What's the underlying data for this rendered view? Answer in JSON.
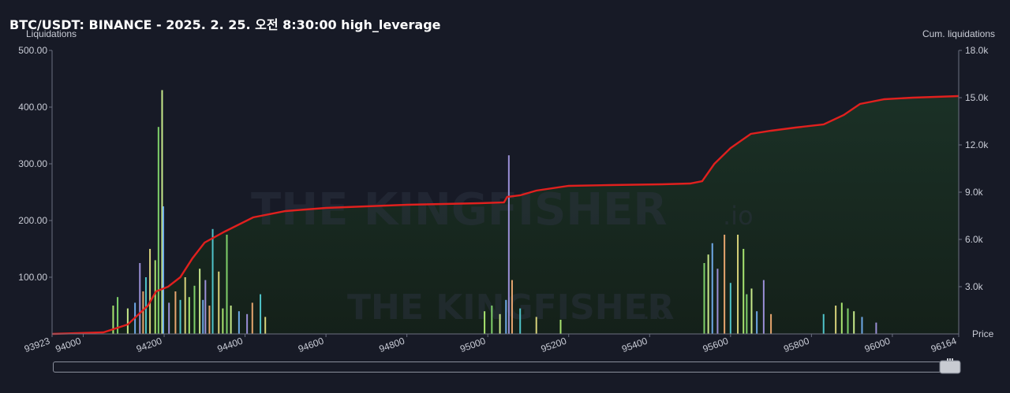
{
  "header": {
    "title": "BTC/USDT: BINANCE - 2025. 2. 25. 오전 8:30:00 high_leverage",
    "left_axis_label": "Liquidations",
    "right_axis_label": "Cum. liquidations",
    "price_label": "Price"
  },
  "watermark": {
    "text": "THE KINGFISHER",
    "suffix": ".io"
  },
  "colors": {
    "background": "#171a26",
    "cum_line": "#e0201e",
    "cum_fill": "#17281f",
    "bar_palette": [
      "#a8e46f",
      "#7fd06a",
      "#c7e98a",
      "#6ea8e6",
      "#9a8fd6",
      "#e6a56e",
      "#4fc3c9",
      "#d7d27a"
    ]
  },
  "scrollbar": {
    "handle_icon": "drag-handle-icon"
  },
  "chart_data": {
    "type": "bar",
    "x_range": [
      93923,
      96164
    ],
    "x_ticks": [
      "93923",
      "94000",
      "94200",
      "94400",
      "94600",
      "94800",
      "95000",
      "95200",
      "95400",
      "95600",
      "95800",
      "96000",
      "96164"
    ],
    "y_left": {
      "label": "Liquidations",
      "range": [
        0,
        500
      ],
      "ticks": [
        "500.00",
        "400.00",
        "300.00",
        "200.00",
        "100.00"
      ]
    },
    "y_right": {
      "label": "Cum. liquidations",
      "range": [
        0,
        18000
      ],
      "ticks": [
        "18.0k",
        "15.0k",
        "12.0k",
        "9.0k",
        "6.0k",
        "3.0k"
      ]
    },
    "bars": [
      {
        "x": 94074,
        "y": 50
      },
      {
        "x": 94085,
        "y": 65
      },
      {
        "x": 94110,
        "y": 45
      },
      {
        "x": 94128,
        "y": 55
      },
      {
        "x": 94140,
        "y": 125
      },
      {
        "x": 94148,
        "y": 75
      },
      {
        "x": 94155,
        "y": 100
      },
      {
        "x": 94165,
        "y": 150
      },
      {
        "x": 94178,
        "y": 130
      },
      {
        "x": 94186,
        "y": 365
      },
      {
        "x": 94195,
        "y": 430
      },
      {
        "x": 94198,
        "y": 225
      },
      {
        "x": 94212,
        "y": 55
      },
      {
        "x": 94228,
        "y": 75
      },
      {
        "x": 94240,
        "y": 60
      },
      {
        "x": 94252,
        "y": 100
      },
      {
        "x": 94262,
        "y": 65
      },
      {
        "x": 94275,
        "y": 85
      },
      {
        "x": 94288,
        "y": 115
      },
      {
        "x": 94296,
        "y": 60
      },
      {
        "x": 94302,
        "y": 95
      },
      {
        "x": 94312,
        "y": 50
      },
      {
        "x": 94320,
        "y": 185
      },
      {
        "x": 94335,
        "y": 110
      },
      {
        "x": 94345,
        "y": 45
      },
      {
        "x": 94355,
        "y": 175
      },
      {
        "x": 94365,
        "y": 50
      },
      {
        "x": 94385,
        "y": 40
      },
      {
        "x": 94405,
        "y": 35
      },
      {
        "x": 94418,
        "y": 55
      },
      {
        "x": 94438,
        "y": 70
      },
      {
        "x": 94450,
        "y": 30
      },
      {
        "x": 94992,
        "y": 40
      },
      {
        "x": 95010,
        "y": 50
      },
      {
        "x": 95030,
        "y": 35
      },
      {
        "x": 95045,
        "y": 60
      },
      {
        "x": 95052,
        "y": 315
      },
      {
        "x": 95060,
        "y": 95
      },
      {
        "x": 95080,
        "y": 45
      },
      {
        "x": 95120,
        "y": 30
      },
      {
        "x": 95180,
        "y": 25
      },
      {
        "x": 95535,
        "y": 125
      },
      {
        "x": 95545,
        "y": 140
      },
      {
        "x": 95555,
        "y": 160
      },
      {
        "x": 95568,
        "y": 115
      },
      {
        "x": 95585,
        "y": 175
      },
      {
        "x": 95600,
        "y": 90
      },
      {
        "x": 95618,
        "y": 175
      },
      {
        "x": 95632,
        "y": 150
      },
      {
        "x": 95640,
        "y": 70
      },
      {
        "x": 95652,
        "y": 80
      },
      {
        "x": 95665,
        "y": 40
      },
      {
        "x": 95682,
        "y": 95
      },
      {
        "x": 95700,
        "y": 35
      },
      {
        "x": 95830,
        "y": 35
      },
      {
        "x": 95860,
        "y": 50
      },
      {
        "x": 95875,
        "y": 55
      },
      {
        "x": 95890,
        "y": 45
      },
      {
        "x": 95905,
        "y": 40
      },
      {
        "x": 95925,
        "y": 30
      },
      {
        "x": 95960,
        "y": 20
      }
    ],
    "cumulative": [
      {
        "x": 93923,
        "y": 0
      },
      {
        "x": 94050,
        "y": 100
      },
      {
        "x": 94110,
        "y": 600
      },
      {
        "x": 94160,
        "y": 1800
      },
      {
        "x": 94180,
        "y": 2700
      },
      {
        "x": 94210,
        "y": 3000
      },
      {
        "x": 94240,
        "y": 3600
      },
      {
        "x": 94270,
        "y": 4800
      },
      {
        "x": 94300,
        "y": 5800
      },
      {
        "x": 94350,
        "y": 6500
      },
      {
        "x": 94420,
        "y": 7400
      },
      {
        "x": 94500,
        "y": 7800
      },
      {
        "x": 94600,
        "y": 8000
      },
      {
        "x": 94800,
        "y": 8200
      },
      {
        "x": 94980,
        "y": 8300
      },
      {
        "x": 95040,
        "y": 8350
      },
      {
        "x": 95048,
        "y": 8700
      },
      {
        "x": 95080,
        "y": 8800
      },
      {
        "x": 95120,
        "y": 9100
      },
      {
        "x": 95200,
        "y": 9400
      },
      {
        "x": 95300,
        "y": 9450
      },
      {
        "x": 95430,
        "y": 9500
      },
      {
        "x": 95500,
        "y": 9550
      },
      {
        "x": 95530,
        "y": 9700
      },
      {
        "x": 95560,
        "y": 10800
      },
      {
        "x": 95600,
        "y": 11800
      },
      {
        "x": 95650,
        "y": 12700
      },
      {
        "x": 95700,
        "y": 12900
      },
      {
        "x": 95760,
        "y": 13100
      },
      {
        "x": 95830,
        "y": 13300
      },
      {
        "x": 95880,
        "y": 13900
      },
      {
        "x": 95920,
        "y": 14600
      },
      {
        "x": 95980,
        "y": 14900
      },
      {
        "x": 96050,
        "y": 15000
      },
      {
        "x": 96164,
        "y": 15100
      }
    ]
  }
}
